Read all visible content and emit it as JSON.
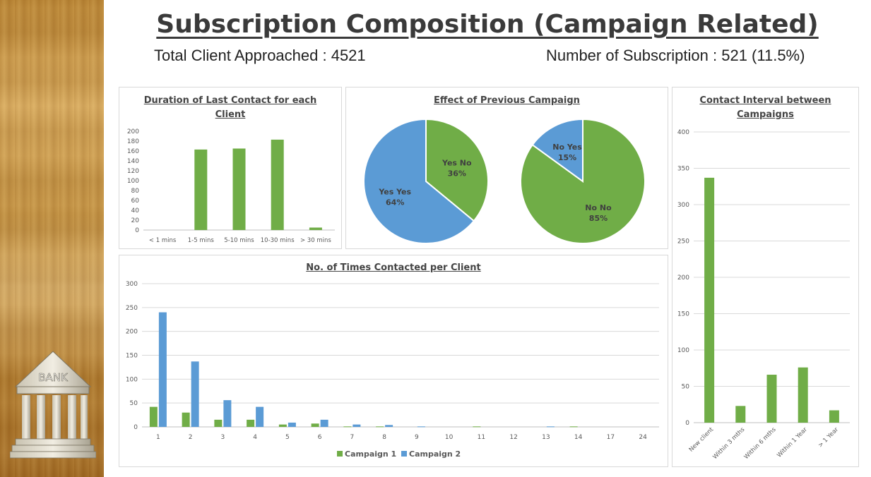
{
  "title": "Subscription Composition (Campaign Related)",
  "stats": {
    "clients_label": "Total Client Approached : 4521",
    "subs_label": "Number of Subscription : 521  (11.5%)"
  },
  "logo_text": "BANK",
  "colors": {
    "green": "#70ad47",
    "blue": "#5b9bd5"
  },
  "chart_data": [
    {
      "id": "duration",
      "type": "bar",
      "title_lines": [
        "Duration of Last Contact for each",
        "Client"
      ],
      "categories": [
        "< 1 mins",
        "1-5 mins",
        "5-10 mins",
        "10-30 mins",
        "> 30 mins"
      ],
      "values": [
        0,
        163,
        165,
        183,
        5
      ],
      "ylim": [
        0,
        200
      ],
      "yticks": [
        0,
        20,
        40,
        60,
        80,
        100,
        120,
        140,
        160,
        180,
        200
      ],
      "grid": false
    },
    {
      "id": "previous_campaign",
      "type": "pie",
      "title_lines": [
        "Effect of Previous Campaign"
      ],
      "pies": [
        {
          "slices": [
            {
              "label": "Yes No",
              "value": 36,
              "pct": "36%",
              "color": "green"
            },
            {
              "label": "Yes Yes",
              "value": 64,
              "pct": "64%",
              "color": "blue"
            }
          ]
        },
        {
          "slices": [
            {
              "label": "No No",
              "value": 85,
              "pct": "85%",
              "color": "green"
            },
            {
              "label": "No Yes",
              "value": 15,
              "pct": "15%",
              "color": "blue"
            }
          ]
        }
      ]
    },
    {
      "id": "times_contacted",
      "type": "bar",
      "title_lines": [
        "No. of Times Contacted per Client"
      ],
      "categories": [
        "1",
        "2",
        "3",
        "4",
        "5",
        "6",
        "7",
        "8",
        "9",
        "10",
        "11",
        "12",
        "13",
        "14",
        "17",
        "24"
      ],
      "series": [
        {
          "name": "Campaign 1",
          "color": "green",
          "values": [
            42,
            30,
            15,
            15,
            5,
            7,
            1,
            1,
            0,
            0,
            1,
            0,
            0,
            1,
            0,
            0
          ]
        },
        {
          "name": "Campaign 2",
          "color": "blue",
          "values": [
            240,
            137,
            56,
            42,
            9,
            15,
            5,
            4,
            1,
            0,
            0,
            0,
            1,
            0,
            0,
            0
          ]
        }
      ],
      "ylim": [
        0,
        300
      ],
      "yticks": [
        0,
        50,
        100,
        150,
        200,
        250,
        300
      ],
      "legend": "bottom",
      "grid": true
    },
    {
      "id": "contact_interval",
      "type": "bar",
      "title_lines": [
        "Contact Interval between",
        "Campaigns"
      ],
      "categories": [
        "New client",
        "Within 3 mths",
        "Within 6 mths",
        "Within 1 Year",
        "> 1 Year"
      ],
      "values": [
        337,
        23,
        66,
        76,
        17
      ],
      "ylim": [
        0,
        400
      ],
      "yticks": [
        0,
        50,
        100,
        150,
        200,
        250,
        300,
        350,
        400
      ],
      "grid": true
    }
  ]
}
